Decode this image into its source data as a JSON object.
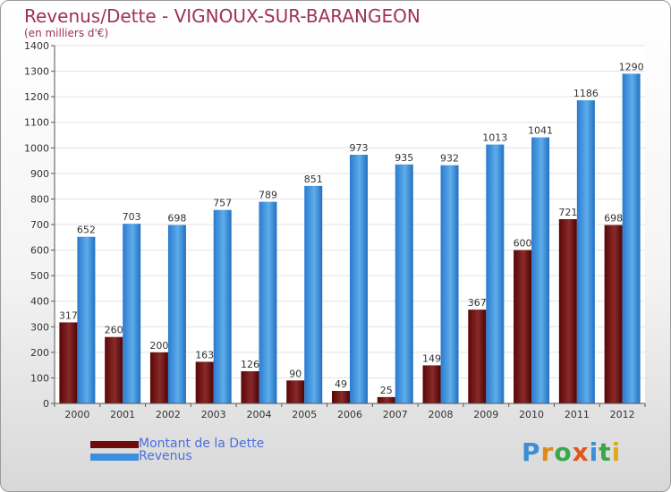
{
  "title": "Revenus/Dette - VIGNOUX-SUR-BARANGEON",
  "subtitle": "(en milliers d'€)",
  "legend": [
    {
      "label": "Montant de la Dette",
      "color": "#6e0a0a"
    },
    {
      "label": "Revenus",
      "color": "#3d8fdc"
    }
  ],
  "logo": {
    "text": "Proxiti",
    "letters": [
      {
        "ch": "P",
        "color": "#3a8fd8"
      },
      {
        "ch": "r",
        "color": "#e08a1e"
      },
      {
        "ch": "o",
        "color": "#3aa84a"
      },
      {
        "ch": "x",
        "color": "#e0581e"
      },
      {
        "ch": "i",
        "color": "#3a8fd8"
      },
      {
        "ch": "t",
        "color": "#3aa84a"
      },
      {
        "ch": "i",
        "color": "#e0a81e"
      }
    ]
  },
  "chart_data": {
    "type": "bar",
    "title": "Revenus/Dette - VIGNOUX-SUR-BARANGEON",
    "subtitle": "(en milliers d'€)",
    "categories": [
      "2000",
      "2001",
      "2002",
      "2003",
      "2004",
      "2005",
      "2006",
      "2007",
      "2008",
      "2009",
      "2010",
      "2011",
      "2012"
    ],
    "series": [
      {
        "name": "Montant de la Dette",
        "color": "#6e0a0a",
        "values": [
          317,
          260,
          200,
          163,
          126,
          90,
          49,
          25,
          149,
          367,
          600,
          721,
          698
        ]
      },
      {
        "name": "Revenus",
        "color": "#3d8fdc",
        "values": [
          652,
          703,
          698,
          757,
          789,
          851,
          973,
          935,
          932,
          1013,
          1041,
          1186,
          1290
        ]
      }
    ],
    "ylim": [
      0,
      1400
    ],
    "yticks": [
      0,
      100,
      200,
      300,
      400,
      500,
      600,
      700,
      800,
      900,
      1000,
      1100,
      1200,
      1300,
      1400
    ],
    "grid": true,
    "legend_position": "bottom-left"
  }
}
